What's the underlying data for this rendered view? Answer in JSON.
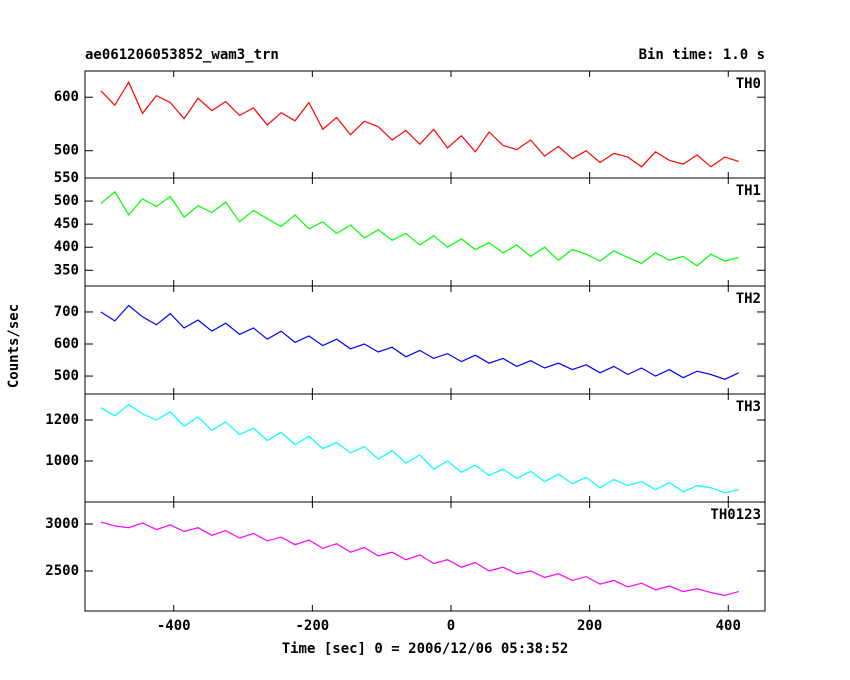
{
  "chart_data": [
    {
      "type": "line",
      "title": "ae061206053852_wam3_trn",
      "subtitle": "Bin time: 1.0 s",
      "label": "TH0",
      "color": "#ff0000",
      "x": [
        -505,
        -485,
        -465,
        -445,
        -425,
        -405,
        -385,
        -365,
        -345,
        -325,
        -305,
        -285,
        -265,
        -245,
        -225,
        -205,
        -185,
        -165,
        -145,
        -125,
        -105,
        -85,
        -65,
        -45,
        -25,
        -5,
        15,
        35,
        55,
        75,
        95,
        115,
        135,
        155,
        175,
        195,
        215,
        235,
        255,
        275,
        295,
        315,
        335,
        355,
        375,
        395,
        415
      ],
      "values": [
        612,
        585,
        628,
        570,
        603,
        590,
        560,
        598,
        575,
        592,
        566,
        580,
        548,
        571,
        556,
        590,
        540,
        562,
        530,
        555,
        545,
        520,
        538,
        512,
        540,
        505,
        528,
        498,
        535,
        510,
        502,
        520,
        490,
        508,
        485,
        500,
        478,
        495,
        488,
        470,
        498,
        482,
        475,
        492,
        470,
        488,
        480
      ],
      "xlim": [
        -528,
        453
      ],
      "ylim": [
        449,
        649
      ],
      "yticks": [
        500,
        600
      ]
    },
    {
      "type": "line",
      "label": "TH1",
      "color": "#00ff00",
      "x": [
        -505,
        -485,
        -465,
        -445,
        -425,
        -405,
        -385,
        -365,
        -345,
        -325,
        -305,
        -285,
        -265,
        -245,
        -225,
        -205,
        -185,
        -165,
        -145,
        -125,
        -105,
        -85,
        -65,
        -45,
        -25,
        -5,
        15,
        35,
        55,
        75,
        95,
        115,
        135,
        155,
        175,
        195,
        215,
        235,
        255,
        275,
        295,
        315,
        335,
        355,
        375,
        395,
        415
      ],
      "values": [
        495,
        520,
        470,
        505,
        488,
        510,
        465,
        490,
        475,
        498,
        455,
        480,
        462,
        445,
        470,
        440,
        455,
        430,
        448,
        420,
        438,
        415,
        430,
        405,
        425,
        400,
        418,
        395,
        410,
        388,
        405,
        380,
        400,
        372,
        395,
        385,
        370,
        392,
        378,
        365,
        388,
        372,
        380,
        360,
        385,
        370,
        378
      ],
      "xlim": [
        -528,
        453
      ],
      "ylim": [
        316,
        550
      ],
      "yticks": [
        350,
        400,
        450,
        500,
        550
      ]
    },
    {
      "type": "line",
      "label": "TH2",
      "color": "#0000ff",
      "y_label": "Counts/sec",
      "x": [
        -505,
        -485,
        -465,
        -445,
        -425,
        -405,
        -385,
        -365,
        -345,
        -325,
        -305,
        -285,
        -265,
        -245,
        -225,
        -205,
        -185,
        -165,
        -145,
        -125,
        -105,
        -85,
        -65,
        -45,
        -25,
        -5,
        15,
        35,
        55,
        75,
        95,
        115,
        135,
        155,
        175,
        195,
        215,
        235,
        255,
        275,
        295,
        315,
        335,
        355,
        375,
        395,
        415
      ],
      "values": [
        700,
        672,
        720,
        685,
        660,
        695,
        650,
        675,
        640,
        665,
        630,
        650,
        615,
        640,
        605,
        625,
        595,
        615,
        585,
        600,
        575,
        590,
        560,
        580,
        555,
        570,
        545,
        565,
        540,
        555,
        530,
        548,
        525,
        540,
        520,
        535,
        510,
        530,
        505,
        525,
        500,
        520,
        495,
        515,
        505,
        490,
        510
      ],
      "xlim": [
        -528,
        453
      ],
      "ylim": [
        444,
        781
      ],
      "yticks": [
        500,
        600,
        700
      ]
    },
    {
      "type": "line",
      "label": "TH3",
      "color": "#00ffff",
      "x": [
        -505,
        -485,
        -465,
        -445,
        -425,
        -405,
        -385,
        -365,
        -345,
        -325,
        -305,
        -285,
        -265,
        -245,
        -225,
        -205,
        -185,
        -165,
        -145,
        -125,
        -105,
        -85,
        -65,
        -45,
        -25,
        -5,
        15,
        35,
        55,
        75,
        95,
        115,
        135,
        155,
        175,
        195,
        215,
        235,
        255,
        275,
        295,
        315,
        335,
        355,
        375,
        395,
        415
      ],
      "values": [
        1260,
        1220,
        1275,
        1230,
        1200,
        1240,
        1170,
        1215,
        1150,
        1190,
        1130,
        1160,
        1100,
        1140,
        1080,
        1120,
        1060,
        1090,
        1040,
        1070,
        1010,
        1050,
        990,
        1030,
        960,
        1000,
        945,
        980,
        930,
        960,
        915,
        950,
        900,
        935,
        890,
        920,
        870,
        910,
        880,
        900,
        860,
        895,
        850,
        880,
        870,
        845,
        860
      ],
      "xlim": [
        -528,
        453
      ],
      "ylim": [
        800,
        1327
      ],
      "yticks": [
        1000,
        1200
      ]
    },
    {
      "type": "line",
      "label": "TH0123",
      "color": "#ff00ff",
      "x_label": "Time [sec] 0 = 2006/12/06 05:38:52",
      "x": [
        -505,
        -485,
        -465,
        -445,
        -425,
        -405,
        -385,
        -365,
        -345,
        -325,
        -305,
        -285,
        -265,
        -245,
        -225,
        -205,
        -185,
        -165,
        -145,
        -125,
        -105,
        -85,
        -65,
        -45,
        -25,
        -5,
        15,
        35,
        55,
        75,
        95,
        115,
        135,
        155,
        175,
        195,
        215,
        235,
        255,
        275,
        295,
        315,
        335,
        355,
        375,
        395,
        415
      ],
      "values": [
        3020,
        2980,
        2960,
        3010,
        2940,
        2990,
        2920,
        2960,
        2880,
        2930,
        2850,
        2900,
        2820,
        2860,
        2780,
        2830,
        2740,
        2790,
        2700,
        2750,
        2660,
        2700,
        2620,
        2670,
        2580,
        2620,
        2540,
        2590,
        2500,
        2540,
        2470,
        2500,
        2430,
        2470,
        2400,
        2440,
        2360,
        2400,
        2330,
        2370,
        2300,
        2340,
        2280,
        2310,
        2270,
        2240,
        2280
      ],
      "xlim": [
        -528,
        453
      ],
      "ylim": [
        2074,
        3234
      ],
      "yticks": [
        2500,
        3000
      ],
      "xticks": [
        -400,
        -200,
        0,
        200,
        400
      ]
    }
  ]
}
